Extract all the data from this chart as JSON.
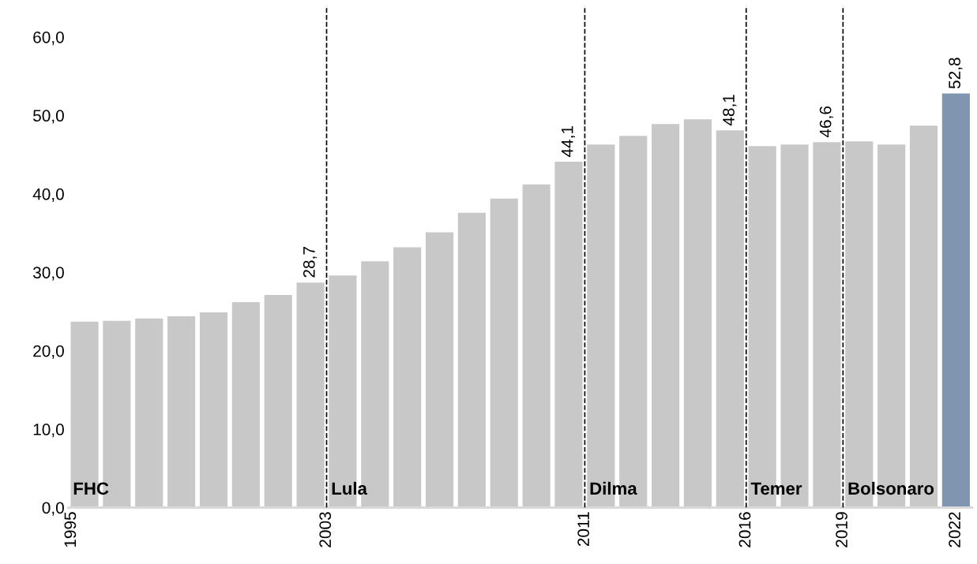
{
  "chart_data": {
    "type": "bar",
    "x": [
      1995,
      1996,
      1997,
      1998,
      1999,
      2000,
      2001,
      2002,
      2003,
      2004,
      2005,
      2006,
      2007,
      2008,
      2009,
      2010,
      2011,
      2012,
      2013,
      2014,
      2015,
      2016,
      2017,
      2018,
      2019,
      2020,
      2021,
      2022
    ],
    "values": [
      23.7,
      23.8,
      24.1,
      24.4,
      24.9,
      26.2,
      27.1,
      28.7,
      29.6,
      31.4,
      33.2,
      35.1,
      37.6,
      39.4,
      41.2,
      44.1,
      46.3,
      47.4,
      48.9,
      49.5,
      48.1,
      46.1,
      46.3,
      46.6,
      46.7,
      46.3,
      48.7,
      52.8
    ],
    "colors": [
      "#c8c8c8",
      "#c8c8c8",
      "#c8c8c8",
      "#c8c8c8",
      "#c8c8c8",
      "#c8c8c8",
      "#c8c8c8",
      "#c8c8c8",
      "#c8c8c8",
      "#c8c8c8",
      "#c8c8c8",
      "#c8c8c8",
      "#c8c8c8",
      "#c8c8c8",
      "#c8c8c8",
      "#c8c8c8",
      "#c8c8c8",
      "#c8c8c8",
      "#c8c8c8",
      "#c8c8c8",
      "#c8c8c8",
      "#c8c8c8",
      "#c8c8c8",
      "#c8c8c8",
      "#c8c8c8",
      "#c8c8c8",
      "#c8c8c8",
      "#8096b0"
    ],
    "value_labels": [
      null,
      null,
      null,
      null,
      null,
      null,
      null,
      "28,7",
      null,
      null,
      null,
      null,
      null,
      null,
      null,
      "44,1",
      null,
      null,
      null,
      null,
      "48,1",
      null,
      null,
      "46,6",
      null,
      null,
      null,
      "52,8"
    ],
    "xlim": [
      1994.5,
      2022.5
    ],
    "xticks": [
      {
        "value": 1994.6,
        "label": "1995"
      },
      {
        "value": 2002.5,
        "label": "2003"
      },
      {
        "value": 2010.5,
        "label": "2011"
      },
      {
        "value": 2015.5,
        "label": "2016"
      },
      {
        "value": 2018.5,
        "label": "2019"
      },
      {
        "value": 2022,
        "label": "2022"
      }
    ],
    "ylim": [
      0,
      64
    ],
    "yticks": [
      {
        "value": 0,
        "label": "0,0"
      },
      {
        "value": 10,
        "label": "10,0"
      },
      {
        "value": 20,
        "label": "20,0"
      },
      {
        "value": 30,
        "label": "30,0"
      },
      {
        "value": 40,
        "label": "40,0"
      },
      {
        "value": 50,
        "label": "50,0"
      },
      {
        "value": 60,
        "label": "60,0"
      }
    ],
    "ref_lines": [
      {
        "axis": "x",
        "value": 2002.5,
        "color": "#000000",
        "line_style": "dashed"
      },
      {
        "axis": "x",
        "value": 2010.5,
        "color": "#000000",
        "line_style": "dashed"
      },
      {
        "axis": "x",
        "value": 2015.5,
        "color": "#000000",
        "line_style": "dashed"
      },
      {
        "axis": "x",
        "value": 2018.5,
        "color": "#000000",
        "line_style": "dashed"
      }
    ],
    "annotations": [
      {
        "text": "FHC",
        "x": 1995,
        "y": 0
      },
      {
        "text": "Lula",
        "x": 2003,
        "y": 0
      },
      {
        "text": "Dilma",
        "x": 2011,
        "y": 0
      },
      {
        "text": "Temer",
        "x": 2016,
        "y": 0
      },
      {
        "text": "Bolsonaro",
        "x": 2019,
        "y": 0
      }
    ],
    "grid": false,
    "legend": false
  }
}
